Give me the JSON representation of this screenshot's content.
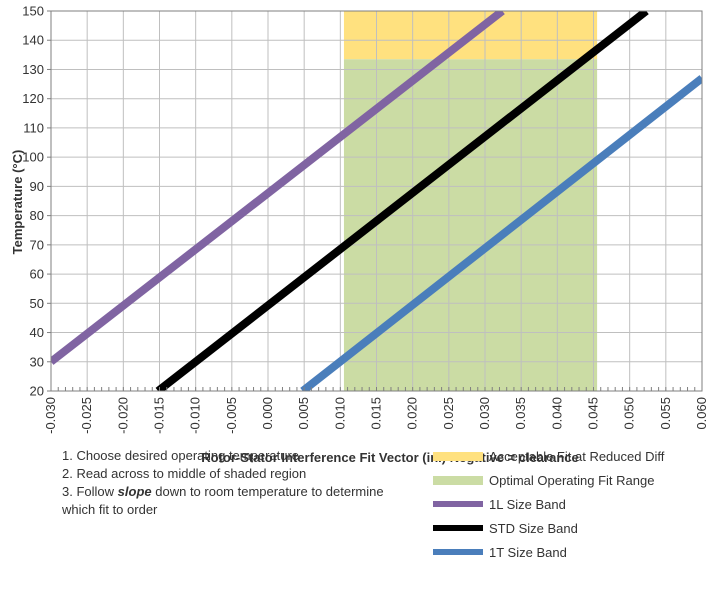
{
  "chart_data": {
    "type": "line",
    "xlabel": "Rotor-Stator Interference Fit Vector (in.) Negative = clearance",
    "ylabel": "Temperature (°C)",
    "xlim": [
      -0.03,
      0.06
    ],
    "ylim": [
      20,
      150
    ],
    "x_ticks": [
      -0.03,
      -0.025,
      -0.02,
      -0.015,
      -0.01,
      -0.005,
      0.0,
      0.005,
      0.01,
      0.015,
      0.02,
      0.025,
      0.03,
      0.035,
      0.04,
      0.045,
      0.05,
      0.055,
      0.06
    ],
    "x_tick_labels": [
      "-0.030",
      "-0.025",
      "-0.020",
      "-0.015",
      "-0.010",
      "-0.005",
      "0.000",
      "0.005",
      "0.010",
      "0.015",
      "0.020",
      "0.025",
      "0.030",
      "0.035",
      "0.040",
      "0.045",
      "0.050",
      "0.055",
      "0.060"
    ],
    "y_ticks": [
      20,
      30,
      40,
      50,
      60,
      70,
      80,
      90,
      100,
      110,
      120,
      130,
      140,
      150
    ],
    "y_tick_labels": [
      "20",
      "30",
      "40",
      "50",
      "60",
      "70",
      "80",
      "90",
      "100",
      "110",
      "120",
      "130",
      "140",
      "150"
    ],
    "grid": true,
    "regions": [
      {
        "name": "Acceptable Fit at Reduced Diff",
        "x": [
          0.0105,
          0.0455
        ],
        "y": [
          133.5,
          150
        ],
        "color": "#FFE17F"
      },
      {
        "name": "Optimal Operating Fit Range",
        "x": [
          0.0105,
          0.0455
        ],
        "y": [
          20,
          133.5
        ],
        "color": "#CBDCA4"
      }
    ],
    "series": [
      {
        "name": "1L Size Band",
        "color": "#8064A2",
        "x": [
          -0.03,
          0.0324
        ],
        "y": [
          30,
          150
        ]
      },
      {
        "name": "STD Size Band",
        "color": "#000000",
        "x": [
          -0.0152,
          0.0523
        ],
        "y": [
          20,
          150
        ]
      },
      {
        "name": "1T Size Band",
        "color": "#4A7EBB",
        "x": [
          0.0048,
          0.06
        ],
        "y": [
          20,
          127
        ]
      }
    ],
    "legend_position": "bottom-right"
  },
  "instructions": [
    "1. Choose desired operating temperature",
    "2. Read across to middle of shaded region",
    "3. Follow",
    "slope",
    "down to room temperature to determine which fit to order"
  ]
}
